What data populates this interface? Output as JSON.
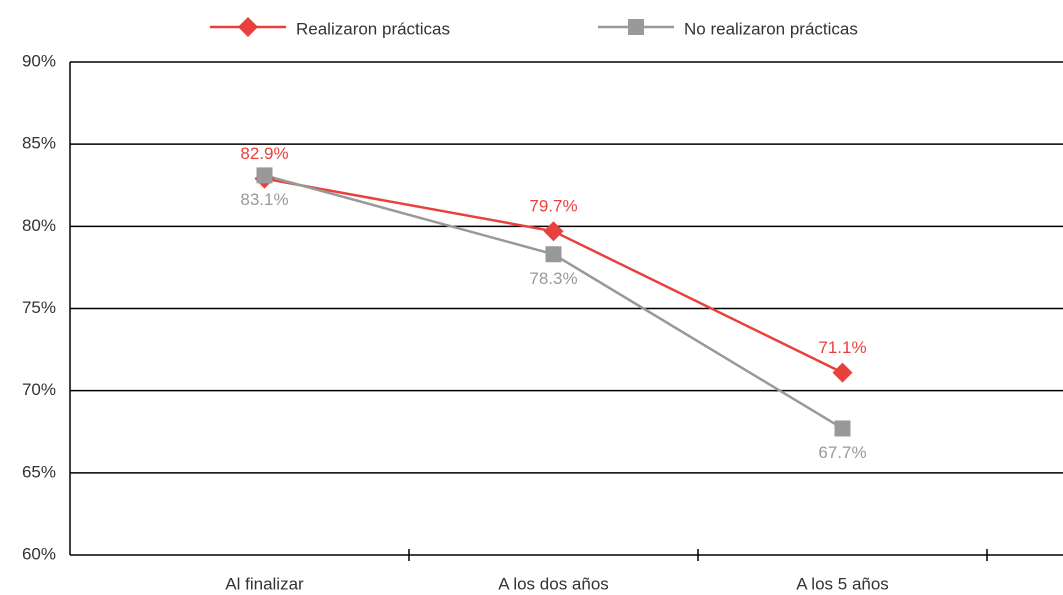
{
  "chart_data": {
    "type": "line",
    "categories": [
      "Al finalizar",
      "A los dos años",
      "A los 5 años"
    ],
    "series": [
      {
        "name": "Realizaron prácticas",
        "color": "#e8413c",
        "marker": "diamond",
        "values": [
          82.9,
          79.7,
          71.1
        ],
        "value_labels": [
          "82.9%",
          "79.7%",
          "71.1%"
        ]
      },
      {
        "name": "No realizaron prácticas",
        "color": "#999999",
        "marker": "square",
        "values": [
          83.1,
          78.3,
          67.7
        ],
        "value_labels": [
          "83.1%",
          "78.3%",
          "67.7%"
        ]
      }
    ],
    "ylim": [
      60,
      90
    ],
    "yticks": [
      {
        "value": 60,
        "label": "60%"
      },
      {
        "value": 65,
        "label": "65%"
      },
      {
        "value": 70,
        "label": "70%"
      },
      {
        "value": 75,
        "label": "75%"
      },
      {
        "value": 80,
        "label": "80%"
      },
      {
        "value": 85,
        "label": "85%"
      },
      {
        "value": 90,
        "label": "90%"
      }
    ],
    "grid": true,
    "legend": "top"
  }
}
